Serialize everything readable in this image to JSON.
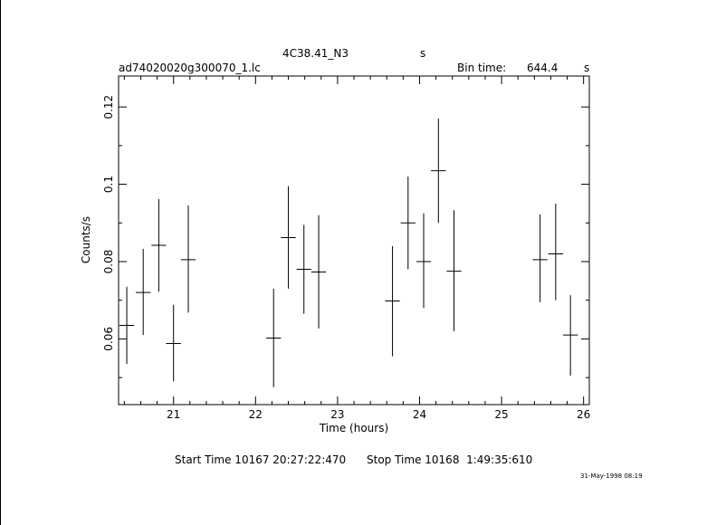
{
  "header": {
    "object_name": "4C38.41_N3",
    "object_unit": "s",
    "file_name": "ad74020020g300070_1.lc",
    "bin_time_label": "Bin time:",
    "bin_time_value": "644.4",
    "bin_time_unit": "s"
  },
  "footer": {
    "start_time": "Start Time 10167 20:27:22:470",
    "stop_time": "Stop Time 10168  1:49:35:610",
    "timestamp": "31-May-1998 08:19"
  },
  "chart_data": {
    "type": "scatter",
    "xlabel": "Time (hours)",
    "ylabel": "Counts/s",
    "xlim": [
      20.33,
      26.07
    ],
    "ylim": [
      0.043,
      0.128
    ],
    "xticks": [
      21,
      22,
      23,
      24,
      25,
      26
    ],
    "xtick_labels": [
      "21",
      "22",
      "23",
      "24",
      "25",
      "26"
    ],
    "yticks": [
      0.06,
      0.08,
      0.1,
      0.12
    ],
    "ytick_labels": [
      "0.06",
      "0.08",
      "0.1",
      "0.12"
    ],
    "x_minor_step": 0.2,
    "y_minor_step": 0.01,
    "grid": false,
    "series": [
      {
        "points": [
          {
            "x": 20.43,
            "xerr": 0.09,
            "y": 0.0635,
            "ylo": 0.0535,
            "yhi": 0.0735
          },
          {
            "x": 20.63,
            "xerr": 0.09,
            "y": 0.072,
            "ylo": 0.061,
            "yhi": 0.0833
          },
          {
            "x": 20.82,
            "xerr": 0.09,
            "y": 0.0842,
            "ylo": 0.0722,
            "yhi": 0.0962
          },
          {
            "x": 21.0,
            "xerr": 0.09,
            "y": 0.0588,
            "ylo": 0.049,
            "yhi": 0.0688
          },
          {
            "x": 21.18,
            "xerr": 0.09,
            "y": 0.0805,
            "ylo": 0.0668,
            "yhi": 0.0945
          },
          {
            "x": 22.22,
            "xerr": 0.09,
            "y": 0.0602,
            "ylo": 0.0475,
            "yhi": 0.073
          },
          {
            "x": 22.4,
            "xerr": 0.09,
            "y": 0.0862,
            "ylo": 0.073,
            "yhi": 0.0995
          },
          {
            "x": 22.59,
            "xerr": 0.09,
            "y": 0.078,
            "ylo": 0.0665,
            "yhi": 0.0895
          },
          {
            "x": 22.77,
            "xerr": 0.09,
            "y": 0.0773,
            "ylo": 0.0627,
            "yhi": 0.092
          },
          {
            "x": 23.67,
            "xerr": 0.09,
            "y": 0.0698,
            "ylo": 0.0555,
            "yhi": 0.084
          },
          {
            "x": 23.86,
            "xerr": 0.09,
            "y": 0.09,
            "ylo": 0.078,
            "yhi": 0.102
          },
          {
            "x": 24.05,
            "xerr": 0.09,
            "y": 0.08,
            "ylo": 0.068,
            "yhi": 0.0925
          },
          {
            "x": 24.23,
            "xerr": 0.09,
            "y": 0.1035,
            "ylo": 0.09,
            "yhi": 0.117
          },
          {
            "x": 24.42,
            "xerr": 0.09,
            "y": 0.0775,
            "ylo": 0.062,
            "yhi": 0.0933
          },
          {
            "x": 25.47,
            "xerr": 0.09,
            "y": 0.0805,
            "ylo": 0.0695,
            "yhi": 0.0922
          },
          {
            "x": 25.66,
            "xerr": 0.09,
            "y": 0.082,
            "ylo": 0.07,
            "yhi": 0.095
          },
          {
            "x": 25.84,
            "xerr": 0.09,
            "y": 0.061,
            "ylo": 0.0505,
            "yhi": 0.0713
          }
        ]
      }
    ]
  }
}
